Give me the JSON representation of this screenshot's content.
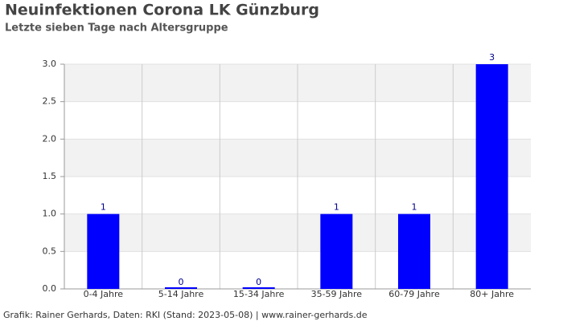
{
  "chart_data": {
    "type": "bar",
    "title": "Neuinfektionen Corona LK Günzburg",
    "subtitle": "Letzte sieben Tage nach Altersgruppe",
    "source": "Grafik: Rainer Gerhards, Daten: RKI (Stand: 2023-05-08) | www.rainer-gerhards.de",
    "categories": [
      "0-4 Jahre",
      "5-14 Jahre",
      "15-34 Jahre",
      "35-59 Jahre",
      "60-79 Jahre",
      "80+ Jahre"
    ],
    "values": [
      1,
      0,
      0,
      1,
      1,
      3
    ],
    "color": "#0000ff",
    "ylim": [
      0,
      3
    ],
    "yticks": [
      {
        "value": 0,
        "label": "0.0"
      },
      0.5,
      {
        "value": 1,
        "label": "1.0"
      },
      1.5,
      {
        "value": 2,
        "label": "2.0"
      },
      2.5,
      {
        "value": 3,
        "label": "3.0"
      }
    ],
    "grid": true
  }
}
